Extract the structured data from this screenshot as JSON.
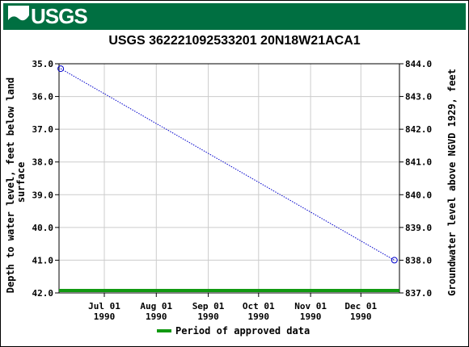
{
  "header": {
    "logo_text": "USGS",
    "banner_color": "#006f41"
  },
  "chart_data": {
    "type": "line",
    "title": "USGS 362221092533201 20N18W21ACA1",
    "ylabel_left": "Depth to water level, feet below land surface",
    "ylabel_right": "Groundwater level above NGVD 1929, feet",
    "y_left_lim": [
      35.0,
      42.0
    ],
    "y_left_inverted": true,
    "y_right_lim": [
      837.0,
      844.0
    ],
    "y_left_ticks": [
      "35.0",
      "36.0",
      "37.0",
      "38.0",
      "39.0",
      "40.0",
      "41.0",
      "42.0"
    ],
    "y_right_ticks": [
      "844.0",
      "843.0",
      "842.0",
      "841.0",
      "840.0",
      "839.0",
      "838.0",
      "837.0"
    ],
    "x_ticks": [
      {
        "month": "Jul 01",
        "year": "1990"
      },
      {
        "month": "Aug 01",
        "year": "1990"
      },
      {
        "month": "Sep 01",
        "year": "1990"
      },
      {
        "month": "Oct 01",
        "year": "1990"
      },
      {
        "month": "Nov 01",
        "year": "1990"
      },
      {
        "month": "Dec 01",
        "year": "1990"
      }
    ],
    "x_range": [
      "1990-06-04",
      "1990-12-24"
    ],
    "series": [
      {
        "points": [
          {
            "date": "1990-06-05",
            "depth": 35.15
          },
          {
            "date": "1990-12-21",
            "depth": 41.0
          }
        ],
        "color": "#0000cc",
        "style": "dotted",
        "marker": "open-circle"
      }
    ],
    "approved_period": {
      "start": "1990-06-04",
      "end": "1990-12-24",
      "color": "#119911"
    },
    "legend": [
      {
        "label": "Period of approved data",
        "color": "#119911"
      }
    ],
    "legend_position": "bottom-center",
    "grid": true
  }
}
